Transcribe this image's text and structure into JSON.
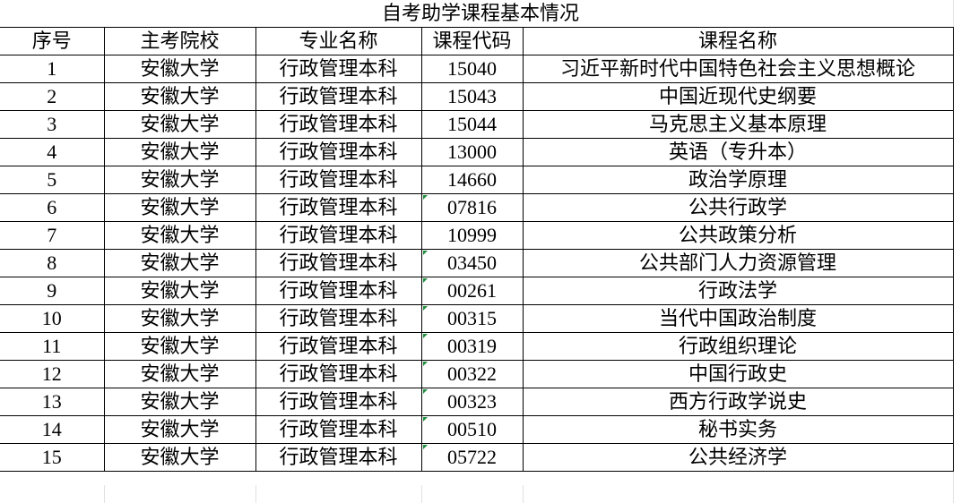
{
  "title": "自考助学课程基本情况",
  "headers": [
    "序号",
    "主考院校",
    "专业名称",
    "课程代码",
    "课程名称"
  ],
  "rows": [
    [
      "1",
      "安徽大学",
      "行政管理本科",
      "15040",
      "习近平新时代中国特色社会主义思想概论",
      false
    ],
    [
      "2",
      "安徽大学",
      "行政管理本科",
      "15043",
      "中国近现代史纲要",
      false
    ],
    [
      "3",
      "安徽大学",
      "行政管理本科",
      "15044",
      "马克思主义基本原理",
      false
    ],
    [
      "4",
      "安徽大学",
      "行政管理本科",
      "13000",
      "英语（专升本）",
      false
    ],
    [
      "5",
      "安徽大学",
      "行政管理本科",
      "14660",
      "政治学原理",
      false
    ],
    [
      "6",
      "安徽大学",
      "行政管理本科",
      "07816",
      "公共行政学",
      true
    ],
    [
      "7",
      "安徽大学",
      "行政管理本科",
      "10999",
      "公共政策分析",
      false
    ],
    [
      "8",
      "安徽大学",
      "行政管理本科",
      "03450",
      "公共部门人力资源管理",
      true
    ],
    [
      "9",
      "安徽大学",
      "行政管理本科",
      "00261",
      "行政法学",
      true
    ],
    [
      "10",
      "安徽大学",
      "行政管理本科",
      "00315",
      "当代中国政治制度",
      true
    ],
    [
      "11",
      "安徽大学",
      "行政管理本科",
      "00319",
      "行政组织理论",
      true
    ],
    [
      "12",
      "安徽大学",
      "行政管理本科",
      "00322",
      "中国行政史",
      true
    ],
    [
      "13",
      "安徽大学",
      "行政管理本科",
      "00323",
      "西方行政学说史",
      true
    ],
    [
      "14",
      "安徽大学",
      "行政管理本科",
      "00510",
      "秘书实务",
      true
    ],
    [
      "15",
      "安徽大学",
      "行政管理本科",
      "05722",
      "公共经济学",
      true
    ]
  ],
  "colors": {
    "text_number_indicator": "#1e8e3e",
    "gridline": "#e1e1e1",
    "border": "#000000"
  }
}
